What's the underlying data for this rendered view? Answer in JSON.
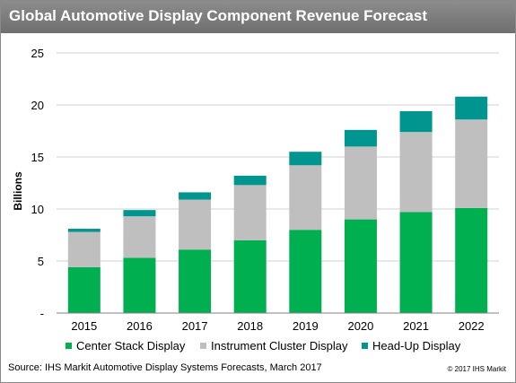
{
  "chart_data": {
    "type": "bar",
    "stacked": true,
    "title": "Global Automotive Display Component Revenue Forecast",
    "ylabel": "Billions",
    "xlabel": "",
    "ylim": [
      0,
      25
    ],
    "yticks": [
      "-",
      "5",
      "10",
      "15",
      "20",
      "25"
    ],
    "ytick_values": [
      0,
      5,
      10,
      15,
      20,
      25
    ],
    "grid": true,
    "legend_position": "bottom",
    "categories": [
      "2015",
      "2016",
      "2017",
      "2018",
      "2019",
      "2020",
      "2021",
      "2022"
    ],
    "series": [
      {
        "name": "Center Stack Display",
        "color": "#00b050",
        "values": [
          4.4,
          5.3,
          6.1,
          7.0,
          8.0,
          9.0,
          9.7,
          10.1
        ]
      },
      {
        "name": "Instrument Cluster Display",
        "color": "#bfbfbf",
        "values": [
          3.4,
          4.0,
          4.8,
          5.3,
          6.2,
          7.0,
          7.7,
          8.5
        ]
      },
      {
        "name": "Head-Up Display",
        "color": "#00968f",
        "values": [
          0.3,
          0.6,
          0.7,
          0.9,
          1.3,
          1.6,
          2.0,
          2.2
        ]
      }
    ]
  },
  "footer": {
    "source": "Source: IHS Markit Automotive Display Systems Forecasts, March 2017",
    "copyright": "© 2017 IHS Markit"
  }
}
